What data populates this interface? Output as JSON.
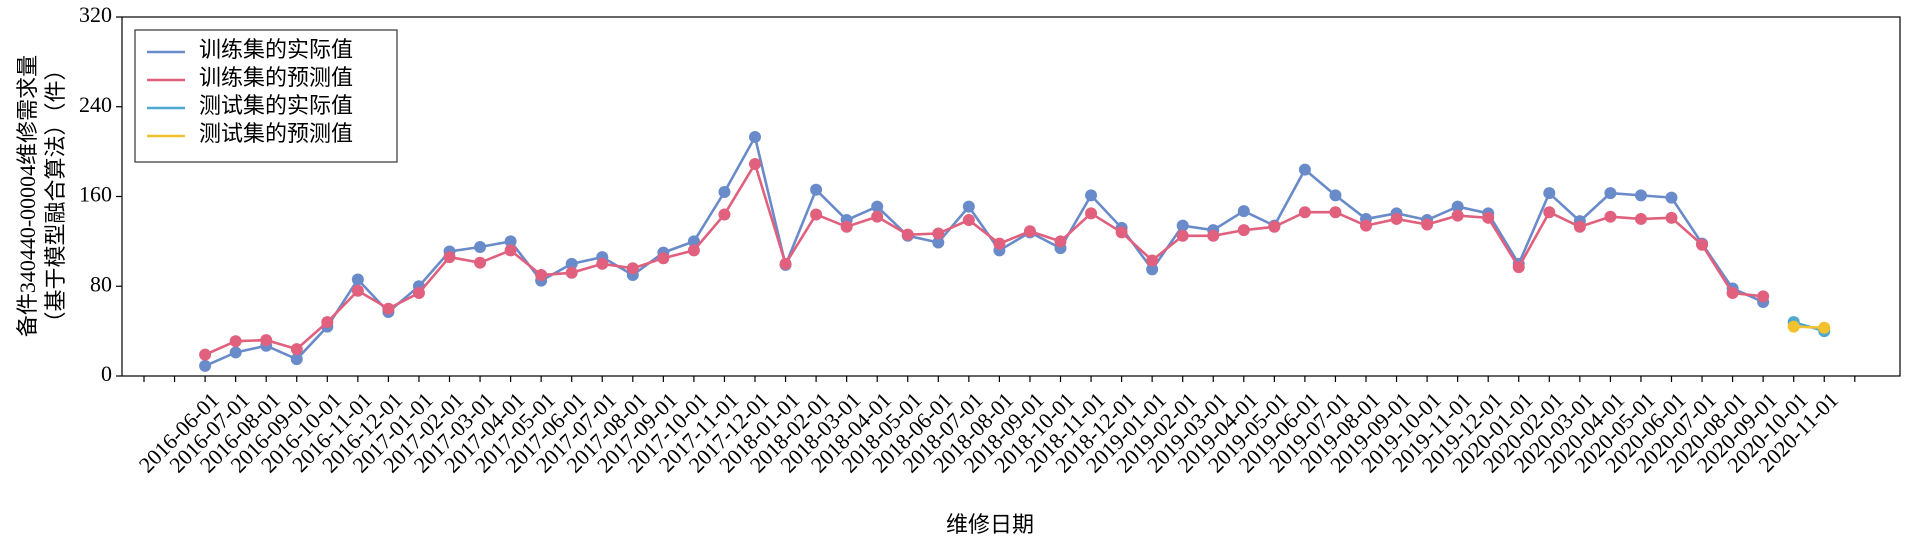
{
  "chart_data": {
    "type": "line",
    "ylabel": [
      "备件340440-00004维修需求量",
      "（基于模型融合算法）（件）"
    ],
    "xlabel": "维修日期",
    "categories": [
      null,
      null,
      "2016-06-01",
      "2016-07-01",
      "2016-08-01",
      "2016-09-01",
      "2016-10-01",
      "2016-11-01",
      "2016-12-01",
      "2017-01-01",
      "2017-02-01",
      "2017-03-01",
      "2017-04-01",
      "2017-05-01",
      "2017-06-01",
      "2017-07-01",
      "2017-08-01",
      "2017-09-01",
      "2017-10-01",
      "2017-11-01",
      "2017-12-01",
      "2018-01-01",
      "2018-02-01",
      "2018-03-01",
      "2018-04-01",
      "2018-05-01",
      "2018-06-01",
      "2018-07-01",
      "2018-08-01",
      "2018-09-01",
      "2018-10-01",
      "2018-11-01",
      "2018-12-01",
      "2019-01-01",
      "2019-02-01",
      "2019-03-01",
      "2019-04-01",
      "2019-05-01",
      "2019-06-01",
      "2019-07-01",
      "2019-08-01",
      "2019-09-01",
      "2019-10-01",
      "2019-11-01",
      "2019-12-01",
      "2020-01-01",
      "2020-02-01",
      "2020-03-01",
      "2020-04-01",
      "2020-05-01",
      "2020-06-01",
      "2020-07-01",
      "2020-08-01",
      "2020-09-01",
      "2020-10-01",
      "2020-11-01",
      null
    ],
    "series": [
      {
        "name": "训练集的实际值",
        "color": "#6a8bc9",
        "values": [
          null,
          null,
          9,
          21,
          27,
          15,
          44,
          86,
          57,
          80,
          111,
          115,
          120,
          85,
          100,
          106,
          90,
          110,
          120,
          164,
          213,
          99,
          166,
          139,
          151,
          125,
          119,
          151,
          112,
          128,
          114,
          161,
          132,
          95,
          134,
          130,
          147,
          134,
          184,
          161,
          140,
          145,
          139,
          151,
          145,
          100,
          163,
          138,
          163,
          161,
          159,
          118,
          78,
          66,
          null,
          null,
          null
        ]
      },
      {
        "name": "训练集的预测值",
        "color": "#e0607e",
        "values": [
          null,
          null,
          19,
          31,
          32,
          24,
          48,
          76,
          60,
          74,
          106,
          101,
          112,
          90,
          92,
          100,
          96,
          105,
          112,
          144,
          189,
          100,
          144,
          133,
          142,
          126,
          127,
          139,
          118,
          129,
          120,
          145,
          128,
          103,
          125,
          125,
          130,
          133,
          146,
          146,
          134,
          140,
          135,
          143,
          141,
          97,
          146,
          133,
          142,
          140,
          141,
          117,
          74,
          71,
          null,
          null,
          null
        ]
      },
      {
        "name": "测试集的实际值",
        "color": "#4fa8d0",
        "values": [
          null,
          null,
          null,
          null,
          null,
          null,
          null,
          null,
          null,
          null,
          null,
          null,
          null,
          null,
          null,
          null,
          null,
          null,
          null,
          null,
          null,
          null,
          null,
          null,
          null,
          null,
          null,
          null,
          null,
          null,
          null,
          null,
          null,
          null,
          null,
          null,
          null,
          null,
          null,
          null,
          null,
          null,
          null,
          null,
          null,
          null,
          null,
          null,
          null,
          null,
          null,
          null,
          null,
          null,
          48,
          40,
          null
        ]
      },
      {
        "name": "测试集的预测值",
        "color": "#f2c12e",
        "values": [
          null,
          null,
          null,
          null,
          null,
          null,
          null,
          null,
          null,
          null,
          null,
          null,
          null,
          null,
          null,
          null,
          null,
          null,
          null,
          null,
          null,
          null,
          null,
          null,
          null,
          null,
          null,
          null,
          null,
          null,
          null,
          null,
          null,
          null,
          null,
          null,
          null,
          null,
          null,
          null,
          null,
          null,
          null,
          null,
          null,
          null,
          null,
          null,
          null,
          null,
          null,
          null,
          null,
          null,
          44,
          43,
          null
        ]
      }
    ],
    "ylim": [
      0,
      320
    ],
    "yticks": [
      0,
      80,
      160,
      240,
      320
    ],
    "grid": false,
    "legend": "upper left"
  }
}
